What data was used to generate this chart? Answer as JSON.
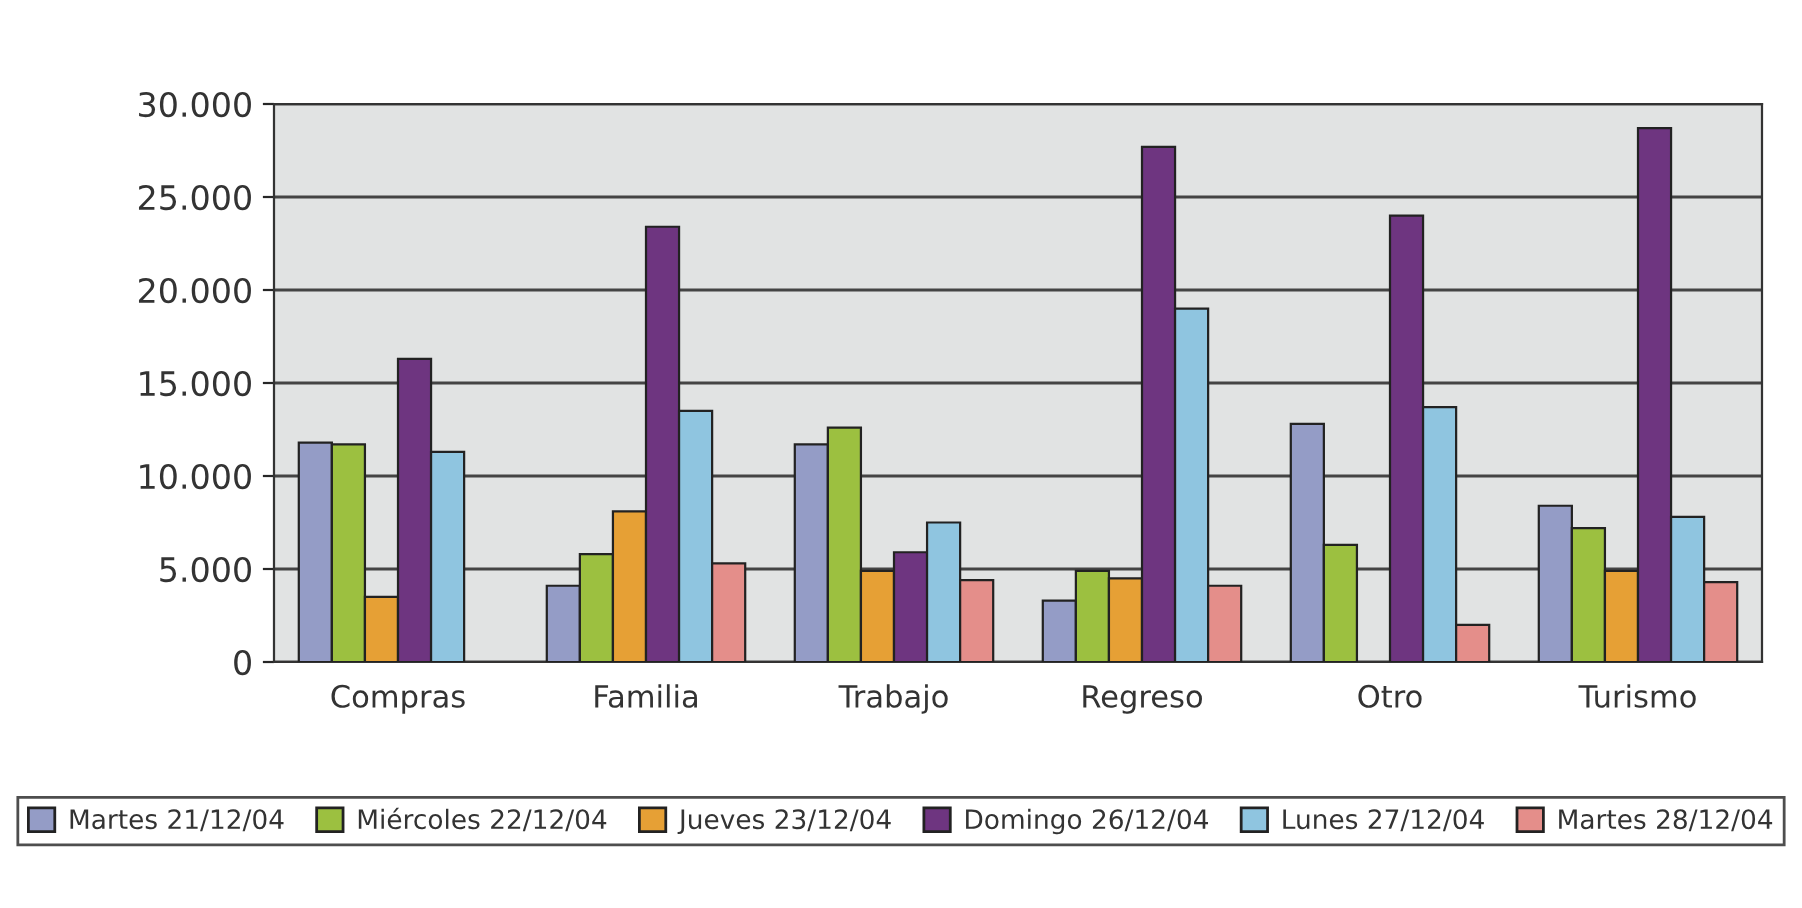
{
  "chart_data": {
    "type": "bar",
    "categories": [
      "Compras",
      "Familia",
      "Trabajo",
      "Regreso",
      "Otro",
      "Turismo"
    ],
    "series": [
      {
        "name": "Martes 21/12/04",
        "color": "#949cc6",
        "values": [
          11800,
          4100,
          11700,
          3300,
          12800,
          8400
        ]
      },
      {
        "name": "Miércoles 22/12/04",
        "color": "#9cc040",
        "values": [
          11700,
          5800,
          12600,
          4900,
          6300,
          7200
        ]
      },
      {
        "name": "Jueves 23/12/04",
        "color": "#e6a035",
        "values": [
          3500,
          8100,
          4900,
          4500,
          null,
          4900
        ]
      },
      {
        "name": "Domingo 26/12/04",
        "color": "#6e3580",
        "values": [
          16300,
          23400,
          5900,
          27700,
          24000,
          28700
        ]
      },
      {
        "name": "Lunes 27/12/04",
        "color": "#8fc5e0",
        "values": [
          11300,
          13500,
          7500,
          19000,
          13700,
          7800
        ]
      },
      {
        "name": "Martes 28/12/04",
        "color": "#e48e8a",
        "values": [
          null,
          5300,
          4400,
          4100,
          2000,
          4300
        ]
      }
    ],
    "ylim": [
      0,
      30000
    ],
    "yticks": [
      {
        "value": 0,
        "label": "0"
      },
      {
        "value": 5000,
        "label": "5.000"
      },
      {
        "value": 10000,
        "label": "10.000"
      },
      {
        "value": 15000,
        "label": "15.000"
      },
      {
        "value": 20000,
        "label": "20.000"
      },
      {
        "value": 25000,
        "label": "25.000"
      },
      {
        "value": 30000,
        "label": "30.000"
      }
    ],
    "grid": "y",
    "legend": "bottom"
  }
}
